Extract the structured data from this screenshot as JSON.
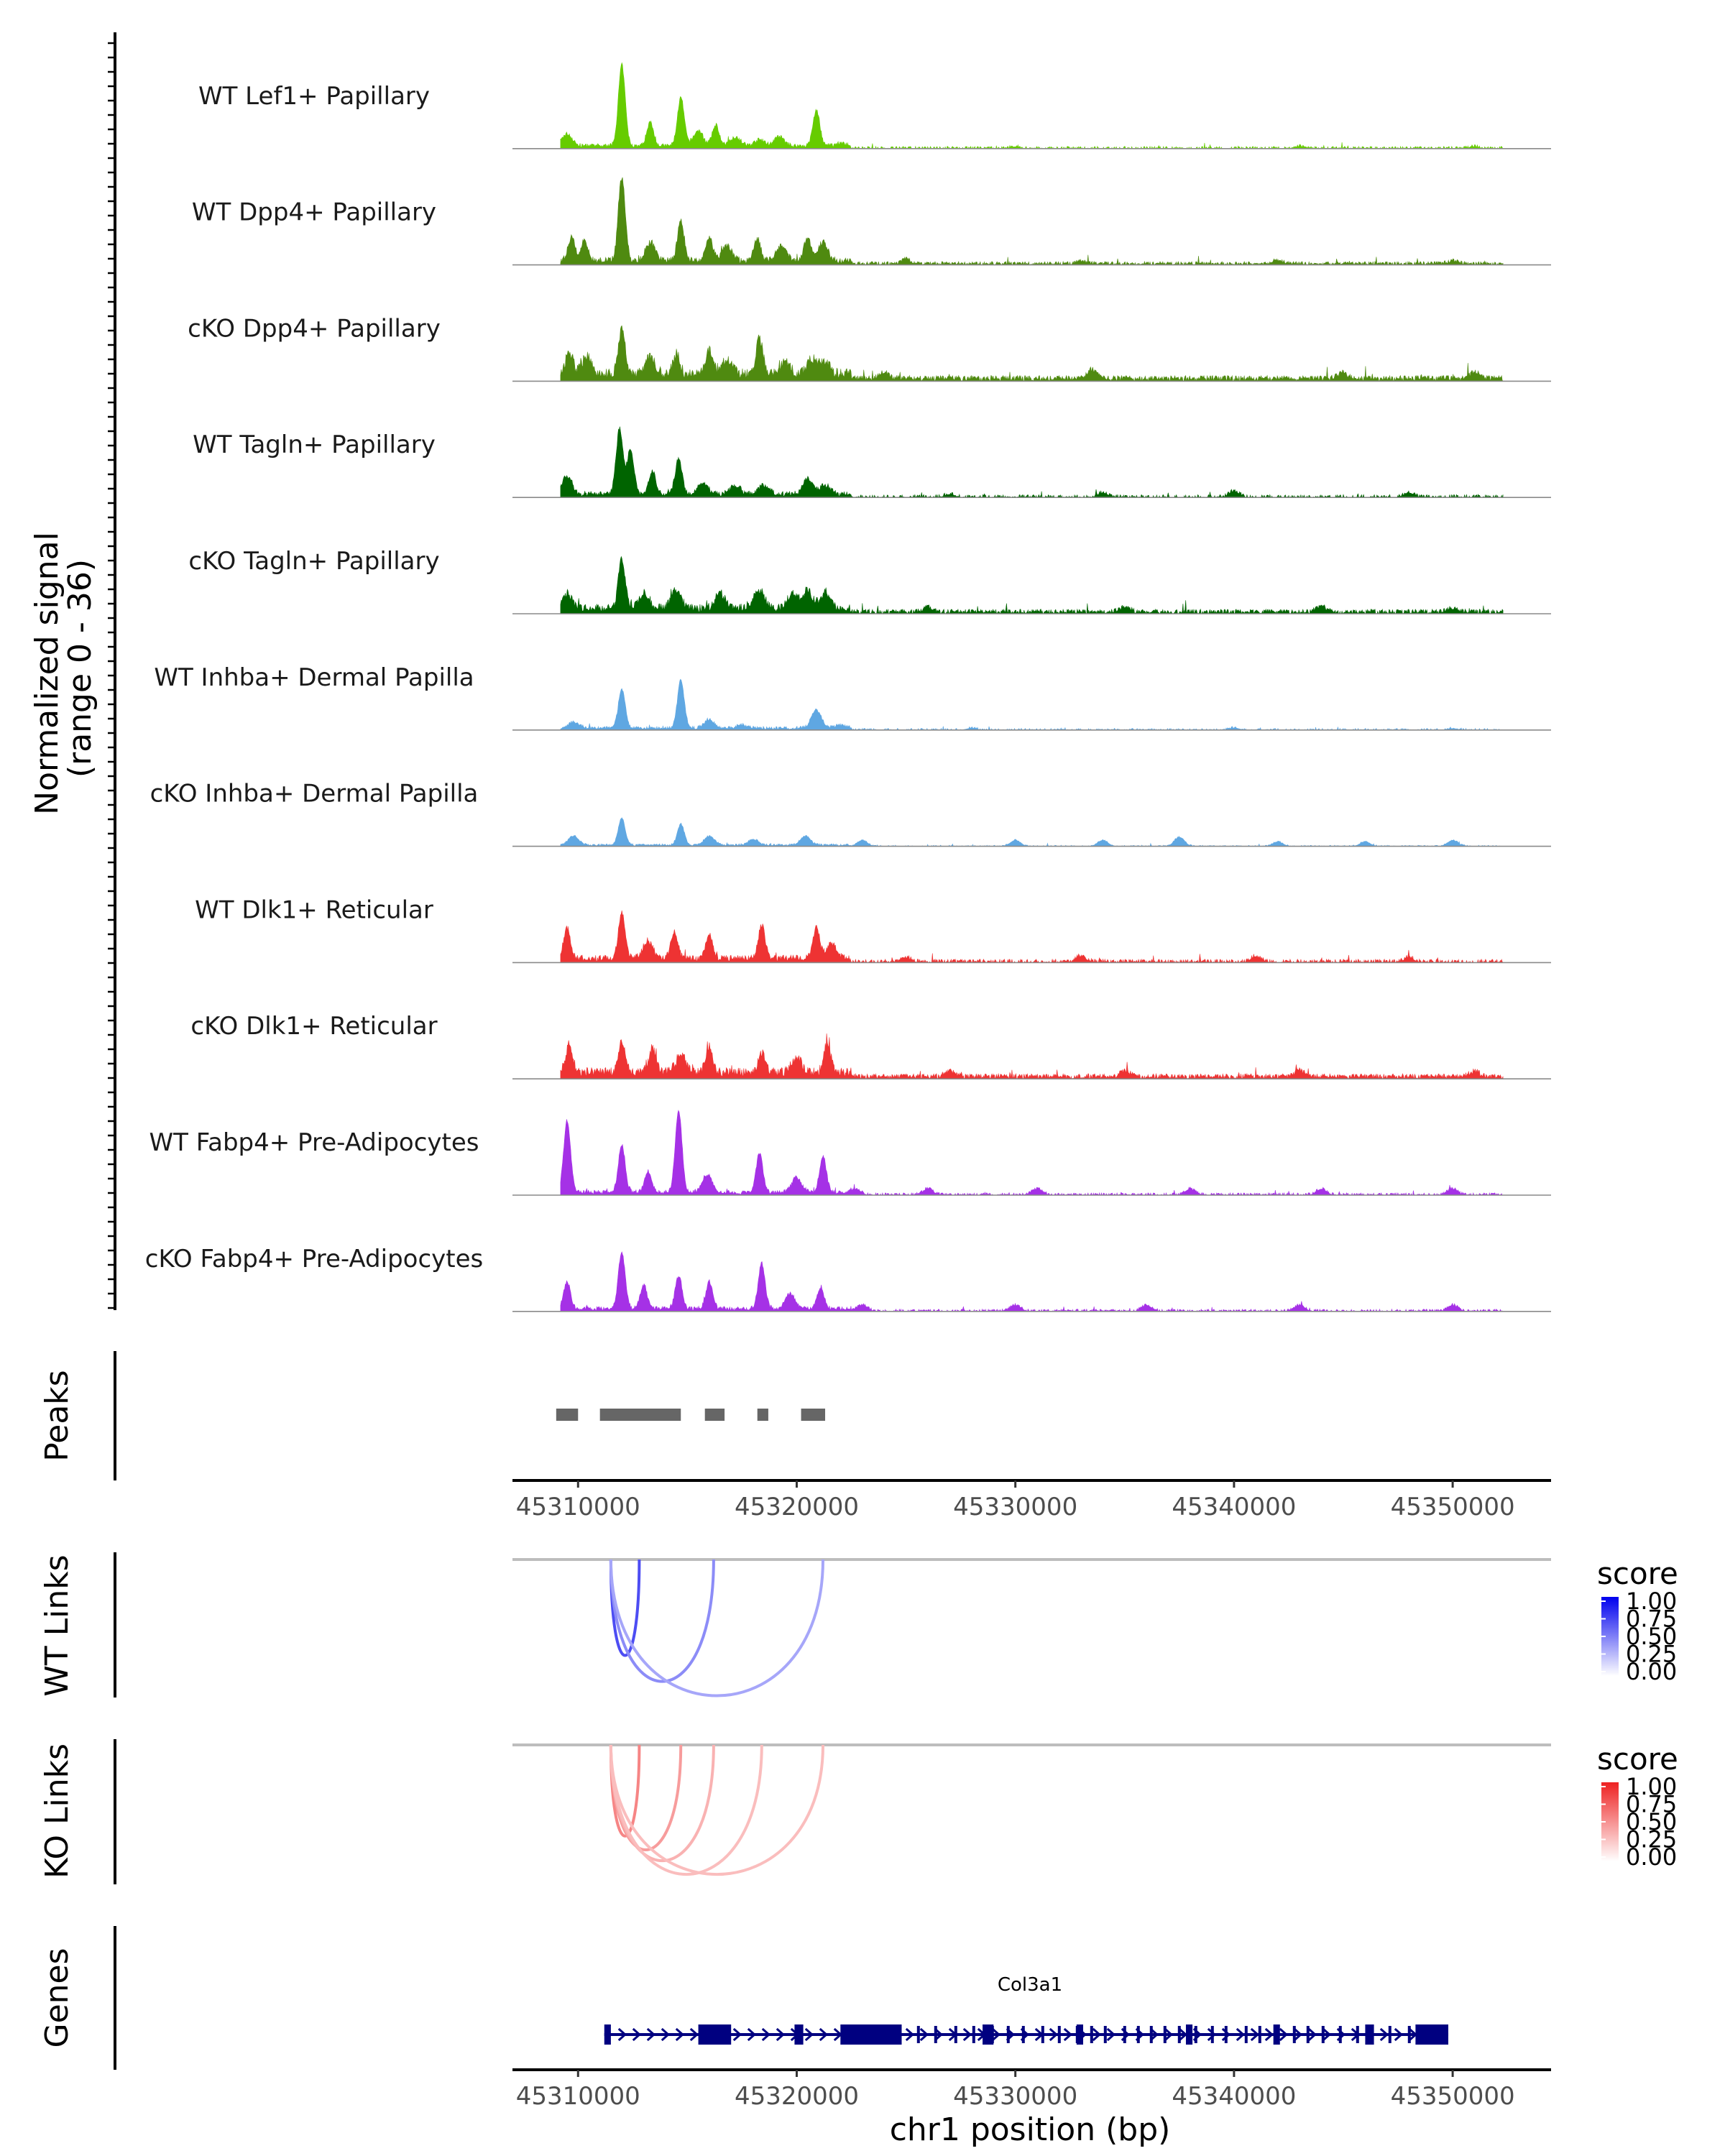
{
  "chart_data": {
    "type": "area",
    "region": {
      "chrom": "chr1",
      "start": 45307000,
      "end": 45354500
    },
    "y_axis": {
      "label_line1": "Normalized signal",
      "label_line2": "(range 0 - 36)",
      "range": [
        0,
        36
      ]
    },
    "coverage_tracks": [
      {
        "name": "WT Lef1+ Papillary",
        "color": "#66CC00",
        "peaks": [
          [
            45309500,
            4
          ],
          [
            45312000,
            27
          ],
          [
            45313300,
            8
          ],
          [
            45314700,
            16
          ],
          [
            45315500,
            5
          ],
          [
            45316300,
            7
          ],
          [
            45317200,
            3
          ],
          [
            45318300,
            2
          ],
          [
            45319200,
            3
          ],
          [
            45320900,
            12
          ],
          [
            45322000,
            1
          ],
          [
            45330000,
            0.6
          ],
          [
            45343000,
            0.7
          ],
          [
            45351000,
            0.6
          ]
        ],
        "baseline": 0.4,
        "fill": 0.5
      },
      {
        "name": "WT Dpp4+ Papillary",
        "color": "#4F8A10",
        "peaks": [
          [
            45309700,
            8
          ],
          [
            45310300,
            7
          ],
          [
            45312000,
            28
          ],
          [
            45313300,
            6
          ],
          [
            45314700,
            13
          ],
          [
            45316000,
            8
          ],
          [
            45316800,
            5
          ],
          [
            45318200,
            7
          ],
          [
            45319300,
            5
          ],
          [
            45320500,
            8
          ],
          [
            45321200,
            6
          ],
          [
            45325000,
            1.5
          ],
          [
            45333000,
            1
          ],
          [
            45342000,
            1.2
          ],
          [
            45350000,
            1
          ]
        ],
        "baseline": 0.6,
        "fill": 0.75
      },
      {
        "name": "cKO Dpp4+ Papillary",
        "color": "#4F8A10",
        "peaks": [
          [
            45309600,
            8
          ],
          [
            45310400,
            6
          ],
          [
            45312000,
            15
          ],
          [
            45313300,
            6
          ],
          [
            45314500,
            7
          ],
          [
            45316000,
            8
          ],
          [
            45316800,
            5
          ],
          [
            45318300,
            12
          ],
          [
            45319500,
            4
          ],
          [
            45320700,
            5
          ],
          [
            45321300,
            4
          ],
          [
            45324000,
            2
          ],
          [
            45333500,
            3
          ],
          [
            45345000,
            2
          ],
          [
            45351000,
            2
          ]
        ],
        "baseline": 1.0,
        "fill": 0.9
      },
      {
        "name": "WT Tagln+ Papillary",
        "color": "#006400",
        "peaks": [
          [
            45309500,
            6
          ],
          [
            45311900,
            22
          ],
          [
            45312400,
            15
          ],
          [
            45313400,
            8
          ],
          [
            45314600,
            12
          ],
          [
            45315700,
            4
          ],
          [
            45317200,
            3
          ],
          [
            45318500,
            3
          ],
          [
            45320500,
            5
          ],
          [
            45321300,
            3
          ],
          [
            45327000,
            1
          ],
          [
            45334000,
            1.5
          ],
          [
            45340000,
            2
          ],
          [
            45348000,
            1.5
          ]
        ],
        "baseline": 0.5,
        "fill": 0.45
      },
      {
        "name": "cKO Tagln+ Papillary",
        "color": "#006400",
        "peaks": [
          [
            45309500,
            5
          ],
          [
            45312000,
            16
          ],
          [
            45313000,
            5
          ],
          [
            45314500,
            6
          ],
          [
            45316500,
            5
          ],
          [
            45318300,
            6
          ],
          [
            45319800,
            5
          ],
          [
            45320500,
            6
          ],
          [
            45321300,
            5
          ],
          [
            45326000,
            1.5
          ],
          [
            45335000,
            2
          ],
          [
            45344000,
            2
          ],
          [
            45350000,
            1.5
          ]
        ],
        "baseline": 0.8,
        "fill": 0.8
      },
      {
        "name": "WT Inhba+ Dermal Papilla",
        "color": "#5FA7E2",
        "peaks": [
          [
            45309800,
            2
          ],
          [
            45312000,
            13
          ],
          [
            45314700,
            16
          ],
          [
            45316000,
            3
          ],
          [
            45317500,
            1
          ],
          [
            45320900,
            6
          ],
          [
            45322000,
            1
          ],
          [
            45328000,
            0.6
          ],
          [
            45340000,
            0.7
          ],
          [
            45350000,
            0.5
          ]
        ],
        "baseline": 0.3,
        "fill": 0.4
      },
      {
        "name": "cKO Inhba+ Dermal Papilla",
        "color": "#5FA7E2",
        "peaks": [
          [
            45309800,
            3
          ],
          [
            45312000,
            9
          ],
          [
            45314700,
            7
          ],
          [
            45316000,
            3
          ],
          [
            45318000,
            2
          ],
          [
            45320400,
            3
          ],
          [
            45323000,
            2
          ],
          [
            45330000,
            2
          ],
          [
            45334000,
            2
          ],
          [
            45337500,
            3
          ],
          [
            45342000,
            1.5
          ],
          [
            45346000,
            1.5
          ],
          [
            45350000,
            2
          ]
        ],
        "baseline": 0.2,
        "fill": 0.35
      },
      {
        "name": "WT Dlk1+ Reticular",
        "color": "#EE3333",
        "peaks": [
          [
            45309500,
            10
          ],
          [
            45312000,
            15
          ],
          [
            45313200,
            6
          ],
          [
            45314400,
            9
          ],
          [
            45316000,
            8
          ],
          [
            45318400,
            11
          ],
          [
            45320900,
            10
          ],
          [
            45321600,
            5
          ],
          [
            45325000,
            1.5
          ],
          [
            45333000,
            2
          ],
          [
            45341000,
            2
          ],
          [
            45348000,
            1.5
          ]
        ],
        "baseline": 0.6,
        "fill": 0.6
      },
      {
        "name": "cKO Dlk1+ Reticular",
        "color": "#EE3333",
        "peaks": [
          [
            45309600,
            10
          ],
          [
            45312000,
            11
          ],
          [
            45313400,
            8
          ],
          [
            45314700,
            6
          ],
          [
            45316000,
            9
          ],
          [
            45318400,
            7
          ],
          [
            45320000,
            5
          ],
          [
            45321400,
            10
          ],
          [
            45327000,
            2
          ],
          [
            45335000,
            2
          ],
          [
            45343000,
            2
          ],
          [
            45351000,
            2
          ]
        ],
        "baseline": 0.9,
        "fill": 0.85
      },
      {
        "name": "WT Fabp4+ Pre-Adipocytes",
        "color": "#A531E6",
        "peaks": [
          [
            45309500,
            24
          ],
          [
            45312000,
            16
          ],
          [
            45313200,
            7
          ],
          [
            45314600,
            27
          ],
          [
            45315900,
            6
          ],
          [
            45318300,
            13
          ],
          [
            45320000,
            5
          ],
          [
            45321200,
            12
          ],
          [
            45322700,
            2
          ],
          [
            45326000,
            2
          ],
          [
            45331000,
            2
          ],
          [
            45338000,
            2
          ],
          [
            45344000,
            2
          ],
          [
            45350000,
            2
          ]
        ],
        "baseline": 0.4,
        "fill": 0.55
      },
      {
        "name": "cKO Fabp4+ Pre-Adipocytes",
        "color": "#A531E6",
        "peaks": [
          [
            45309500,
            9
          ],
          [
            45312000,
            19
          ],
          [
            45313000,
            8
          ],
          [
            45314600,
            11
          ],
          [
            45316000,
            9
          ],
          [
            45318400,
            15
          ],
          [
            45319700,
            5
          ],
          [
            45321100,
            7
          ],
          [
            45323000,
            2
          ],
          [
            45330000,
            2
          ],
          [
            45336000,
            2
          ],
          [
            45343000,
            2
          ],
          [
            45350000,
            2
          ]
        ],
        "baseline": 0.4,
        "fill": 0.55
      }
    ],
    "peaks": {
      "label": "Peaks",
      "color": "#666666",
      "intervals": [
        [
          45309000,
          45310000
        ],
        [
          45311000,
          45314700
        ],
        [
          45315800,
          45316700
        ],
        [
          45318200,
          45318700
        ],
        [
          45320200,
          45321300
        ]
      ]
    },
    "x_axis": {
      "label": "chr1 position (bp)",
      "ticks": [
        45310000,
        45320000,
        45330000,
        45340000,
        45350000
      ],
      "tick_labels": [
        "45310000",
        "45320000",
        "45330000",
        "45340000",
        "45350000"
      ]
    },
    "links": [
      {
        "label": "WT Links",
        "legend_title": "score",
        "color_low": "#FFFFFF",
        "color_high": "#0000EE",
        "legend_ticks": [
          "1.00",
          "0.75",
          "0.50",
          "0.25",
          "0.00"
        ],
        "arcs": [
          {
            "start": 45311500,
            "end": 45312800,
            "score": 0.7
          },
          {
            "start": 45311500,
            "end": 45316200,
            "score": 0.45
          },
          {
            "start": 45311500,
            "end": 45321200,
            "score": 0.35
          }
        ]
      },
      {
        "label": "KO Links",
        "legend_title": "score",
        "color_low": "#FFFFFF",
        "color_high": "#EE2222",
        "legend_ticks": [
          "1.00",
          "0.75",
          "0.50",
          "0.25",
          "0.00"
        ],
        "arcs": [
          {
            "start": 45311500,
            "end": 45312800,
            "score": 0.55
          },
          {
            "start": 45311500,
            "end": 45314700,
            "score": 0.45
          },
          {
            "start": 45311500,
            "end": 45316200,
            "score": 0.35
          },
          {
            "start": 45311500,
            "end": 45318400,
            "score": 0.3
          },
          {
            "start": 45311500,
            "end": 45321200,
            "score": 0.3
          }
        ]
      }
    ],
    "genes": {
      "label": "Genes",
      "color": "#000080",
      "gene_name": "Col3a1",
      "start": 45311200,
      "end": 45349800,
      "exons": [
        [
          45311200,
          45311500
        ],
        [
          45315500,
          45317000
        ],
        [
          45319900,
          45320300
        ],
        [
          45322000,
          45324800
        ],
        [
          45328500,
          45329000
        ],
        [
          45332800,
          45333100
        ],
        [
          45337800,
          45338100
        ],
        [
          45341800,
          45342100
        ],
        [
          45346000,
          45346400
        ],
        [
          45348300,
          45349800
        ]
      ]
    }
  }
}
